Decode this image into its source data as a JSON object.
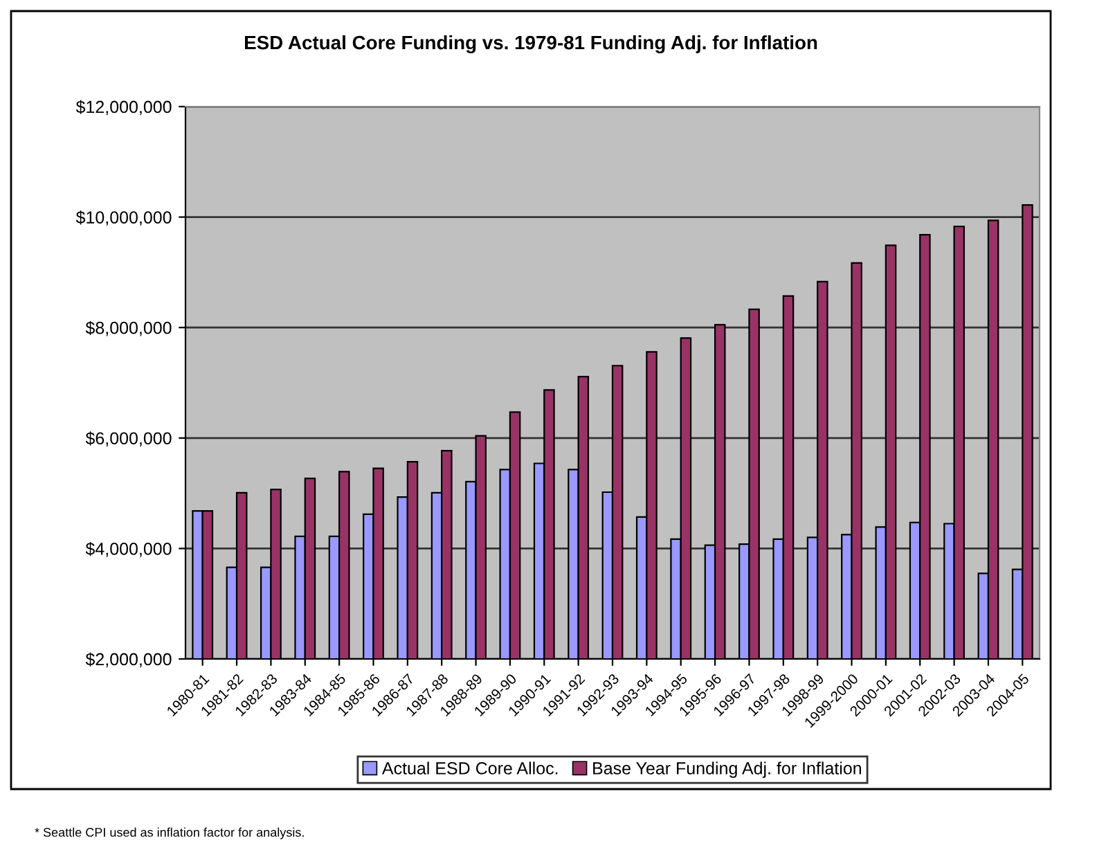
{
  "chart_data": {
    "type": "bar",
    "title": "ESD Actual Core Funding vs. 1979-81 Funding Adj. for Inflation",
    "categories": [
      "1980-81",
      "1981-82",
      "1982-83",
      "1983-84",
      "1984-85",
      "1985-86",
      "1986-87",
      "1987-88",
      "1988-89",
      "1989-90",
      "1990-91",
      "1991-92",
      "1992-93",
      "1993-94",
      "1994-95",
      "1995-96",
      "1996-97",
      "1997-98",
      "1998-99",
      "1999-2000",
      "2000-01",
      "2001-02",
      "2002-03",
      "2003-04",
      "2004-05"
    ],
    "series": [
      {
        "name": "Actual ESD Core Alloc.",
        "color": "#9999ff",
        "values": [
          4680000,
          3660000,
          3660000,
          4220000,
          4220000,
          4620000,
          4930000,
          5010000,
          5210000,
          5430000,
          5540000,
          5430000,
          5020000,
          4570000,
          4170000,
          4060000,
          4080000,
          4170000,
          4200000,
          4250000,
          4390000,
          4470000,
          4450000,
          3550000,
          3620000
        ]
      },
      {
        "name": "Base Year Funding Adj. for Inflation",
        "color": "#993366",
        "values": [
          4680000,
          5010000,
          5070000,
          5270000,
          5390000,
          5450000,
          5570000,
          5770000,
          6040000,
          6470000,
          6870000,
          7110000,
          7310000,
          7560000,
          7810000,
          8050000,
          8330000,
          8570000,
          8830000,
          9170000,
          9490000,
          9680000,
          9830000,
          9940000,
          10220000
        ]
      }
    ],
    "ylim": [
      2000000,
      12000000
    ],
    "yticks": [
      {
        "value": 2000000,
        "label": "$2,000,000"
      },
      {
        "value": 4000000,
        "label": "$4,000,000"
      },
      {
        "value": 6000000,
        "label": "$6,000,000"
      },
      {
        "value": 8000000,
        "label": "$8,000,000"
      },
      {
        "value": 10000000,
        "label": "$10,000,000"
      },
      {
        "value": 12000000,
        "label": "$12,000,000"
      }
    ],
    "grid": "y",
    "legend": "bottom",
    "annotations": [
      "* Seattle CPI used as inflation factor for analysis."
    ]
  }
}
